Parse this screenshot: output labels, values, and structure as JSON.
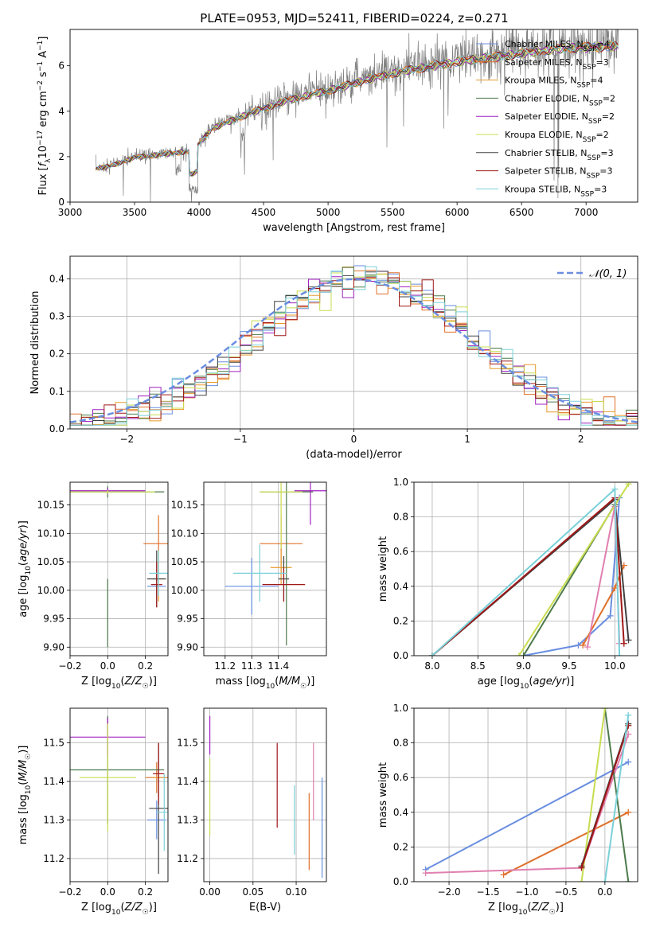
{
  "figure_title": "PLATE=0953, MJD=52411, FIBERID=0224, z=0.271",
  "colors": {
    "spectrum": "#808080",
    "c_miles": "#6a8ee0",
    "s_miles": "#e0702a",
    "k_miles": "#e89a2a",
    "c_elodie": "#4c7a4c",
    "s_elodie": "#a020c0",
    "k_elodie": "#c8dc50",
    "c_stelib": "#404040",
    "s_stelib": "#a01818",
    "k_stelib": "#7ad0d8",
    "gaussian": "#6a8ee0",
    "pink": "#e080b0"
  },
  "chart_data": [
    {
      "type": "line",
      "title": "PLATE=0953, MJD=52411, FIBERID=0224, z=0.271",
      "xlabel": "wavelength [Angstrom, rest frame]",
      "ylabel": "Flux [f_λ 10^-17 erg cm^-2 s^-1 A^-1]",
      "xlim": [
        3000,
        7400
      ],
      "ylim": [
        0,
        7.6
      ],
      "xticks": [
        "3000",
        "3500",
        "4000",
        "4500",
        "5000",
        "5500",
        "6000",
        "6500",
        "7000"
      ],
      "yticks": [
        "0",
        "2",
        "4",
        "6"
      ],
      "grid": false,
      "legend_position": "top-right",
      "continuum_x": [
        3200,
        3300,
        3500,
        3800,
        3950,
        4100,
        4400,
        4700,
        5000,
        5300,
        5600,
        6000,
        6400,
        6800,
        7200
      ],
      "continuum_y": [
        1.5,
        1.6,
        2.0,
        2.2,
        2.3,
        3.3,
        4.0,
        4.6,
        5.0,
        5.5,
        5.9,
        6.3,
        6.6,
        6.9,
        7.0
      ],
      "legend": [
        {
          "key": "c_miles",
          "label": "Chabrier MILES, N_SSP=4"
        },
        {
          "key": "s_miles",
          "label": "Salpeter MILES, N_SSP=3"
        },
        {
          "key": "k_miles",
          "label": "Kroupa MILES, N_SSP=4"
        },
        {
          "key": "c_elodie",
          "label": "Chabrier ELODIE, N_SSP=2"
        },
        {
          "key": "s_elodie",
          "label": "Salpeter ELODIE, N_SSP=2"
        },
        {
          "key": "k_elodie",
          "label": "Kroupa ELODIE, N_SSP=2"
        },
        {
          "key": "c_stelib",
          "label": "Chabrier STELIB, N_SSP=3"
        },
        {
          "key": "s_stelib",
          "label": "Salpeter STELIB, N_SSP=3"
        },
        {
          "key": "k_stelib",
          "label": "Kroupa STELIB, N_SSP=3"
        }
      ]
    },
    {
      "type": "line",
      "xlabel": "(data-model)/error",
      "ylabel": "Normed distribution",
      "xlim": [
        -2.5,
        2.5
      ],
      "ylim": [
        0,
        0.46
      ],
      "xticks": [
        "-2",
        "-1",
        "0",
        "1",
        "2"
      ],
      "yticks": [
        "0.0",
        "0.1",
        "0.2",
        "0.3",
        "0.4"
      ],
      "grid": true,
      "legend_position": "top-right",
      "gaussian_label": "𝒩(0, 1)",
      "bin_width": 0.1
    },
    {
      "type": "scatter",
      "xlabel": "Z [log10(Z/Z☉)]",
      "ylabel": "age [log10(age/yr)]",
      "xlim": [
        -0.2,
        0.32
      ],
      "ylim": [
        9.885,
        10.19
      ],
      "xticks": [
        "-0.2",
        "0.0",
        "0.2"
      ],
      "yticks": [
        "9.90",
        "9.95",
        "10.00",
        "10.05",
        "10.10",
        "10.15"
      ],
      "grid": true,
      "points": [
        {
          "key": "c_miles",
          "x": 0.26,
          "xerr": 0.05,
          "y": 10.007,
          "yerr": 0.02
        },
        {
          "key": "s_miles",
          "x": 0.27,
          "xerr": 0.08,
          "y": 10.082,
          "yerr": 0.05
        },
        {
          "key": "k_miles",
          "x": 0.27,
          "xerr": 0.03,
          "y": 10.02,
          "yerr": 0.04
        },
        {
          "key": "c_elodie",
          "x": 0.0,
          "xerr": 0.3,
          "y": 10.173,
          "yerr": 0.01
        },
        {
          "key": "s_elodie",
          "x": 0.0,
          "xerr": 0.2,
          "y": 10.175,
          "yerr": 0.005
        },
        {
          "key": "k_elodie",
          "x": 0.0,
          "xerr": 0.25,
          "y": 10.173,
          "yerr": 0.003
        },
        {
          "key": "c_stelib",
          "x": 0.26,
          "xerr": 0.05,
          "y": 10.02,
          "yerr": 0.05
        },
        {
          "key": "s_stelib",
          "x": 0.26,
          "xerr": 0.03,
          "y": 10.01,
          "yerr": 0.04
        },
        {
          "key": "k_stelib",
          "x": 0.27,
          "xerr": 0.05,
          "y": 10.03,
          "yerr": 0.04
        },
        {
          "key": "c_elodie",
          "x": 0.0,
          "xerr": 0.0,
          "y": 9.96,
          "yerr": 0.06
        }
      ]
    },
    {
      "type": "scatter",
      "xlabel": "mass [log10(M/M☉)]",
      "ylabel": "",
      "xlim": [
        11.12,
        11.58
      ],
      "ylim": [
        9.885,
        10.19
      ],
      "xticks": [
        "11.2",
        "11.3",
        "11.4"
      ],
      "yticks": [
        "9.90",
        "9.95",
        "10.00",
        "10.05",
        "10.10",
        "10.15"
      ],
      "grid": true,
      "points": [
        {
          "key": "c_miles",
          "x": 11.3,
          "xerr": 0.1,
          "y": 10.007,
          "yerr": 0.05
        },
        {
          "key": "s_miles",
          "x": 11.41,
          "xerr": 0.08,
          "y": 10.082,
          "yerr": 0.05
        },
        {
          "key": "k_miles",
          "x": 11.41,
          "xerr": 0.04,
          "y": 10.04,
          "yerr": 0.03
        },
        {
          "key": "c_elodie",
          "x": 11.43,
          "xerr": 0.1,
          "y": 10.173,
          "yerr": 0.27
        },
        {
          "key": "s_elodie",
          "x": 11.52,
          "xerr": 0.06,
          "y": 10.175,
          "yerr": 0.06
        },
        {
          "key": "k_elodie",
          "x": 11.41,
          "xerr": 0.08,
          "y": 10.173,
          "yerr": 0.1
        },
        {
          "key": "c_stelib",
          "x": 11.42,
          "xerr": 0.02,
          "y": 10.02,
          "yerr": 0.04
        },
        {
          "key": "s_stelib",
          "x": 11.42,
          "xerr": 0.08,
          "y": 10.01,
          "yerr": 0.03
        },
        {
          "key": "k_stelib",
          "x": 11.33,
          "xerr": 0.1,
          "y": 10.03,
          "yerr": 0.05
        }
      ]
    },
    {
      "type": "line",
      "xlabel": "age [log10(age/yr)]",
      "ylabel": "mass weight",
      "xlim": [
        7.8,
        10.25
      ],
      "ylim": [
        0,
        1.0
      ],
      "xticks": [
        "8.0",
        "8.5",
        "9.0",
        "9.5",
        "10.0"
      ],
      "yticks": [
        "0.0",
        "0.2",
        "0.4",
        "0.6",
        "0.8",
        "1.0"
      ],
      "grid": true,
      "series": [
        {
          "key": "c_miles",
          "x": [
            9.0,
            9.6,
            9.95,
            10.05
          ],
          "y": [
            0.0,
            0.06,
            0.23,
            0.91
          ]
        },
        {
          "key": "s_miles",
          "x": [
            9.65,
            10.0,
            10.1
          ],
          "y": [
            0.06,
            0.39,
            0.52
          ]
        },
        {
          "key": "c_elodie",
          "x": [
            9.0,
            10.0
          ],
          "y": [
            0.0,
            0.87
          ]
        },
        {
          "key": "k_elodie",
          "x": [
            8.95,
            10.15
          ],
          "y": [
            0.0,
            0.99
          ]
        },
        {
          "key": "pink",
          "x": [
            9.7,
            10.0,
            10.05
          ],
          "y": [
            0.05,
            0.86,
            0.07
          ]
        },
        {
          "key": "c_stelib",
          "x": [
            8.0,
            10.0,
            10.15
          ],
          "y": [
            0.0,
            0.9,
            0.09
          ]
        },
        {
          "key": "s_stelib",
          "x": [
            8.0,
            10.0,
            10.1
          ],
          "y": [
            0.0,
            0.91,
            0.07
          ]
        },
        {
          "key": "k_stelib",
          "x": [
            8.0,
            10.0,
            10.05
          ],
          "y": [
            0.0,
            0.96,
            0.0
          ]
        }
      ]
    },
    {
      "type": "scatter",
      "xlabel": "Z [log10(Z/Z☉)]",
      "ylabel": "mass [log10(M/M☉)]",
      "xlim": [
        -0.2,
        0.32
      ],
      "ylim": [
        11.14,
        11.59
      ],
      "xticks": [
        "-0.2",
        "0.0",
        "0.2"
      ],
      "yticks": [
        "11.2",
        "11.3",
        "11.4",
        "11.5"
      ],
      "grid": true,
      "points": [
        {
          "key": "c_miles",
          "x": 0.26,
          "xerr": 0.05,
          "y": 11.3,
          "yerr": 0.05
        },
        {
          "key": "s_miles",
          "x": 0.26,
          "xerr": 0.06,
          "y": 11.41,
          "yerr": 0.04
        },
        {
          "key": "k_miles",
          "x": 0.27,
          "xerr": 0.04,
          "y": 11.41,
          "yerr": 0.05
        },
        {
          "key": "c_elodie",
          "x": 0.0,
          "xerr": 0.3,
          "y": 11.43,
          "yerr": 0.14
        },
        {
          "key": "s_elodie",
          "x": 0.0,
          "xerr": 0.2,
          "y": 11.515,
          "yerr": 0.05
        },
        {
          "key": "k_elodie",
          "x": 0.0,
          "xerr": 0.15,
          "y": 11.41,
          "yerr": 0.14
        },
        {
          "key": "c_stelib",
          "x": 0.27,
          "xerr": 0.05,
          "y": 11.33,
          "yerr": 0.17
        },
        {
          "key": "s_stelib",
          "x": 0.27,
          "xerr": 0.03,
          "y": 11.42,
          "yerr": 0.08
        },
        {
          "key": "k_stelib",
          "x": 0.3,
          "xerr": 0.04,
          "y": 11.32,
          "yerr": 0.1
        }
      ]
    },
    {
      "type": "scatter",
      "xlabel": "E(B-V)",
      "ylabel": "",
      "xlim": [
        -0.007,
        0.135
      ],
      "ylim": [
        11.14,
        11.59
      ],
      "xticks": [
        "0.00",
        "0.05",
        "0.10"
      ],
      "yticks": [
        "11.2",
        "11.3",
        "11.4",
        "11.5"
      ],
      "grid": true,
      "points": [
        {
          "key": "c_miles",
          "x": 0.13,
          "xerr": 0,
          "y": 11.28,
          "yerr": 0.13
        },
        {
          "key": "s_miles",
          "x": 0.115,
          "xerr": 0,
          "y": 11.27,
          "yerr": 0.1
        },
        {
          "key": "pink",
          "x": 0.12,
          "xerr": 0,
          "y": 11.4,
          "yerr": 0.1
        },
        {
          "key": "s_elodie",
          "x": 0.0,
          "xerr": 0,
          "y": 11.52,
          "yerr": 0.05
        },
        {
          "key": "k_elodie",
          "x": 0.0,
          "xerr": 0,
          "y": 11.36,
          "yerr": 0.1
        },
        {
          "key": "s_stelib",
          "x": 0.078,
          "xerr": 0,
          "y": 11.39,
          "yerr": 0.11
        },
        {
          "key": "k_stelib",
          "x": 0.098,
          "xerr": 0,
          "y": 11.3,
          "yerr": 0.09
        }
      ]
    },
    {
      "type": "line",
      "xlabel": "Z [log10(Z/Z☉)]",
      "ylabel": "mass weight",
      "xlim": [
        -2.45,
        0.42
      ],
      "ylim": [
        0,
        1.0
      ],
      "xticks": [
        "-2.0",
        "-1.5",
        "-1.0",
        "-0.5",
        "0.0"
      ],
      "yticks": [
        "0.0",
        "0.2",
        "0.4",
        "0.6",
        "0.8",
        "1.0"
      ],
      "grid": true,
      "series": [
        {
          "key": "c_miles",
          "x": [
            -2.3,
            0.3
          ],
          "y": [
            0.07,
            0.69
          ]
        },
        {
          "key": "s_miles",
          "x": [
            -1.3,
            0.3
          ],
          "y": [
            0.04,
            0.4
          ]
        },
        {
          "key": "pink",
          "x": [
            -2.3,
            -0.3,
            0.3
          ],
          "y": [
            0.05,
            0.08,
            0.85
          ]
        },
        {
          "key": "c_elodie",
          "x": [
            0.0,
            0.3
          ],
          "y": [
            1.0,
            0.0
          ]
        },
        {
          "key": "k_elodie",
          "x": [
            -0.3,
            0.0
          ],
          "y": [
            0.0,
            1.0
          ]
        },
        {
          "key": "c_stelib",
          "x": [
            -0.3,
            0.3
          ],
          "y": [
            0.09,
            0.91
          ]
        },
        {
          "key": "s_stelib",
          "x": [
            -0.3,
            0.3
          ],
          "y": [
            0.08,
            0.9
          ]
        },
        {
          "key": "k_stelib",
          "x": [
            0.0,
            0.3
          ],
          "y": [
            0.0,
            0.96
          ]
        }
      ]
    }
  ]
}
